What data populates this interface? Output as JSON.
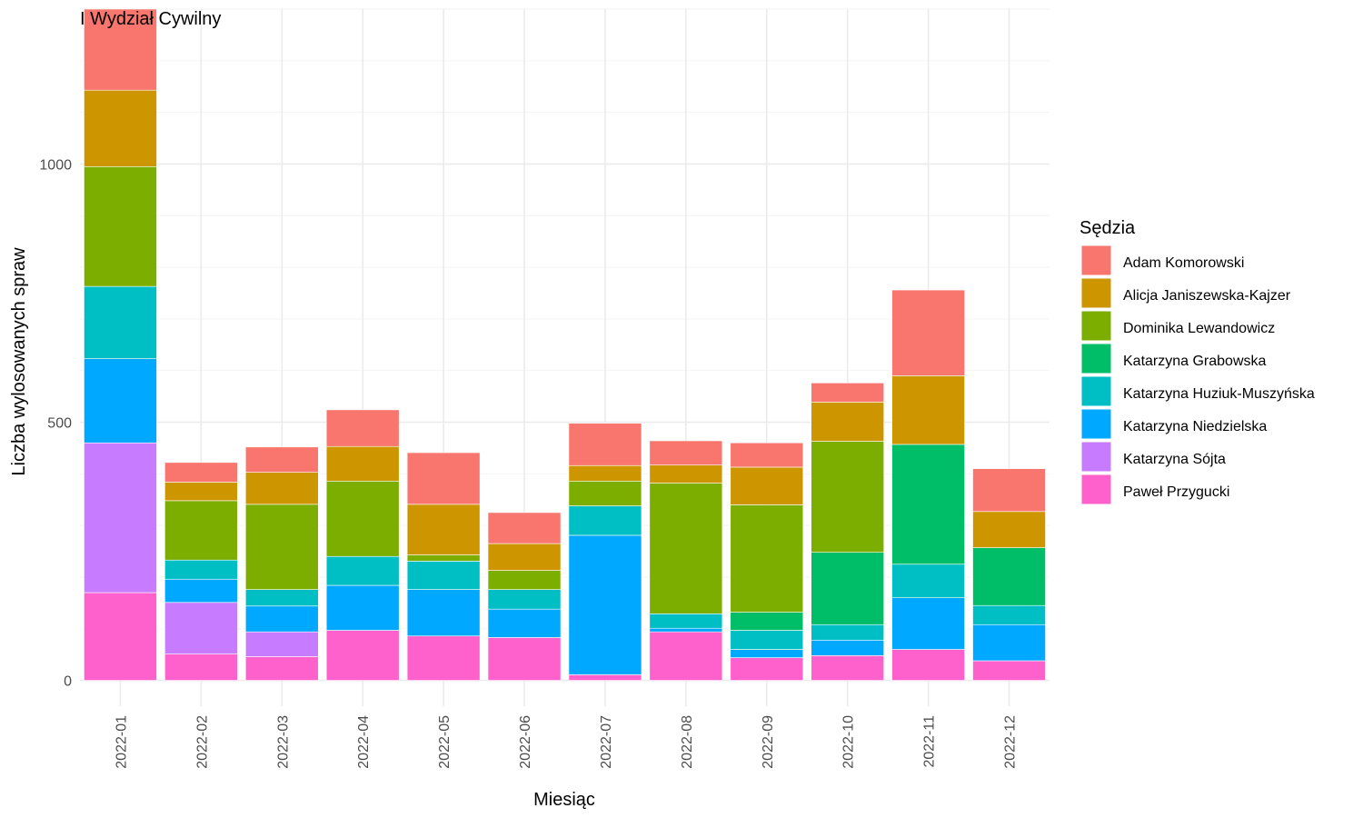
{
  "chart_data": {
    "type": "bar",
    "stacked": true,
    "title": "I Wydział Cywilny",
    "xlabel": "Miesiąc",
    "ylabel": "Liczba wylosowanych spraw",
    "ylim": [
      -50,
      1300
    ],
    "yticks": [
      0,
      500,
      1000
    ],
    "grid": true,
    "legend": {
      "title": "Sędzia",
      "placement": "right"
    },
    "categories": [
      "2022-01",
      "2022-02",
      "2022-03",
      "2022-04",
      "2022-05",
      "2022-06",
      "2022-07",
      "2022-08",
      "2022-09",
      "2022-10",
      "2022-11",
      "2022-12"
    ],
    "series": [
      {
        "name": "Paweł Przygucki",
        "color": "#FF61CC",
        "values": [
          170,
          51,
          46,
          97,
          86,
          83,
          11,
          94,
          44,
          48,
          60,
          38
        ]
      },
      {
        "name": "Katarzyna Sójta",
        "color": "#C77CFF",
        "values": [
          290,
          100,
          48,
          0,
          0,
          0,
          0,
          0,
          0,
          0,
          0,
          0
        ]
      },
      {
        "name": "Katarzyna Niedzielska",
        "color": "#00A9FF",
        "values": [
          163,
          45,
          50,
          87,
          90,
          55,
          270,
          7,
          16,
          30,
          100,
          70
        ]
      },
      {
        "name": "Katarzyna Huziuk-Muszyńska",
        "color": "#00BFC4",
        "values": [
          140,
          37,
          32,
          56,
          55,
          38,
          57,
          28,
          37,
          30,
          65,
          37
        ]
      },
      {
        "name": "Katarzyna Grabowska",
        "color": "#00BE67",
        "values": [
          0,
          0,
          0,
          0,
          0,
          0,
          0,
          0,
          35,
          140,
          232,
          112
        ]
      },
      {
        "name": "Dominika Lewandowicz",
        "color": "#7CAE00",
        "values": [
          232,
          115,
          165,
          146,
          12,
          37,
          48,
          253,
          208,
          215,
          0,
          0
        ]
      },
      {
        "name": "Alicja Janiszewska-Kajzer",
        "color": "#CD9600",
        "values": [
          148,
          36,
          62,
          67,
          98,
          52,
          30,
          35,
          73,
          76,
          133,
          70
        ]
      },
      {
        "name": "Adam Komorowski",
        "color": "#F8766D",
        "values": [
          157,
          38,
          49,
          71,
          100,
          60,
          82,
          47,
          47,
          37,
          166,
          83
        ]
      }
    ],
    "legend_order": [
      "Adam Komorowski",
      "Alicja Janiszewska-Kajzer",
      "Dominika Lewandowicz",
      "Katarzyna Grabowska",
      "Katarzyna Huziuk-Muszyńska",
      "Katarzyna Niedzielska",
      "Katarzyna Sójta",
      "Paweł Przygucki"
    ]
  }
}
